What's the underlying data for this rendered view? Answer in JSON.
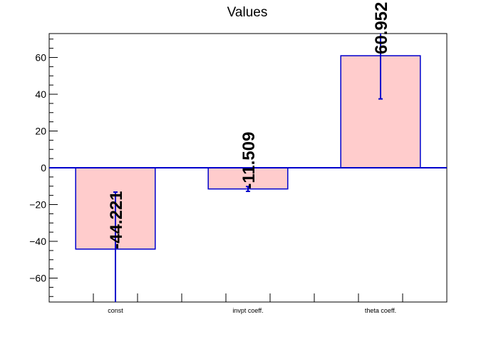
{
  "chart_data": {
    "type": "bar",
    "title": "Values",
    "xlabel": "",
    "ylabel": "",
    "categories": [
      "const",
      "invpt coeff.",
      "theta coeff."
    ],
    "values": [
      -44.221,
      -11.509,
      60.952
    ],
    "errors": [
      31.0,
      1.3,
      23.5
    ],
    "data_labels": [
      "-44.221",
      "-11.509",
      "60.952"
    ],
    "ylim": [
      -73,
      73
    ],
    "yticks": [
      -60,
      -40,
      -20,
      0,
      20,
      40,
      60
    ],
    "ytick_labels": [
      "−60",
      "−40",
      "−20",
      "0",
      "20",
      "40",
      "60"
    ],
    "grid": false,
    "bar_fill": "#ffcccc",
    "bar_edge": "#0000cc"
  }
}
